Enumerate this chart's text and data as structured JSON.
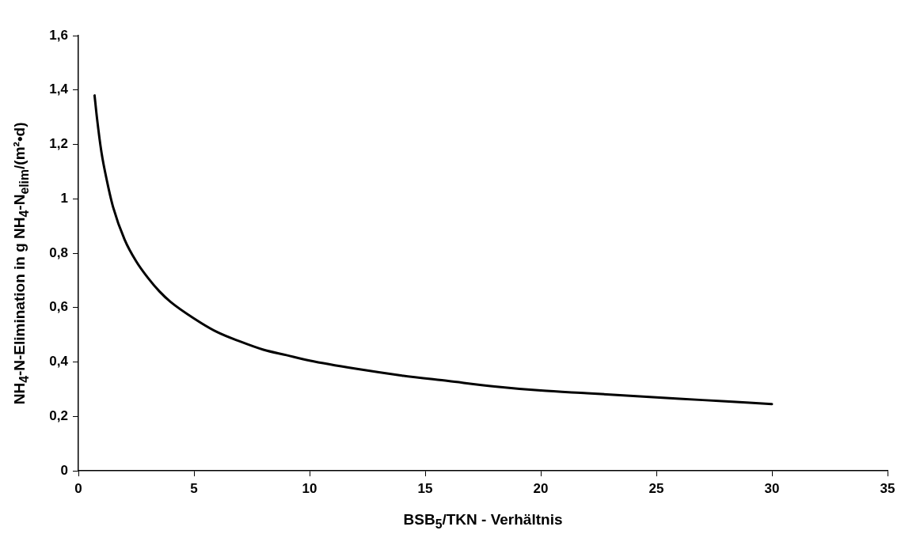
{
  "chart_data": {
    "type": "line",
    "xlabel": "BSB$_{5}$/TKN - Verhältnis",
    "ylabel": "NH$_{4}$-N-Elimination in g NH$_{4}$-N$_{elim}$/(m²•d)",
    "xlim": [
      0,
      35
    ],
    "xticks": [
      0,
      5,
      10,
      15,
      20,
      25,
      30,
      35
    ],
    "ylim": [
      0,
      1.6
    ],
    "yticks": [
      0,
      {
        "value": 0.2,
        "label": "0,2"
      },
      {
        "value": 0.4,
        "label": "0,4"
      },
      {
        "value": 0.6,
        "label": "0,6"
      },
      {
        "value": 0.8,
        "label": "0,8"
      },
      1,
      {
        "value": 1.2,
        "label": "1,2"
      },
      {
        "value": 1.4,
        "label": "1,4"
      },
      {
        "value": 1.6,
        "label": "1,6"
      }
    ],
    "grid": false,
    "legend": false,
    "marker": "none",
    "line_style": "solid",
    "series": [
      {
        "color": "#000000",
        "x": [
          0.7,
          0.8,
          1,
          1.25,
          1.5,
          2,
          2.5,
          3,
          3.5,
          4,
          5,
          6,
          7,
          8,
          9,
          10,
          12,
          14,
          16,
          18,
          20,
          22,
          24,
          26,
          28,
          30
        ],
        "values": [
          1.38,
          1.3,
          1.17,
          1.06,
          0.97,
          0.85,
          0.77,
          0.71,
          0.66,
          0.62,
          0.56,
          0.51,
          0.475,
          0.445,
          0.425,
          0.405,
          0.375,
          0.35,
          0.33,
          0.31,
          0.295,
          0.285,
          0.275,
          0.265,
          0.255,
          0.245
        ]
      }
    ]
  }
}
